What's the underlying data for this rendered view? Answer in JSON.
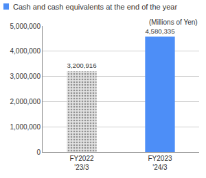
{
  "chart_data": {
    "type": "bar",
    "y_label": "(Millions of Yen)",
    "categories": [
      "FY2022 '23/3",
      "FY2023 '24/3"
    ],
    "series": [
      {
        "name": "Cash and cash equivalents at the end of the year",
        "color": "#4d8ef7",
        "colors": [
          "#e2e2e2",
          "#4d8ef7"
        ],
        "values": [
          3200916,
          4580335
        ],
        "value_labels": [
          "3,200,916",
          "4,580,335"
        ]
      }
    ],
    "ylim": [
      0,
      5000000
    ],
    "yticks": [
      0,
      {
        "value": 1000000,
        "label": "1,000,000"
      },
      {
        "value": 2000000,
        "label": "2,000,000"
      },
      {
        "value": 3000000,
        "label": "3,000,000"
      },
      {
        "value": 4000000,
        "label": "4,000,000"
      },
      {
        "value": 5000000,
        "label": "5,000,000"
      }
    ],
    "grid": true,
    "data_labels": true
  }
}
